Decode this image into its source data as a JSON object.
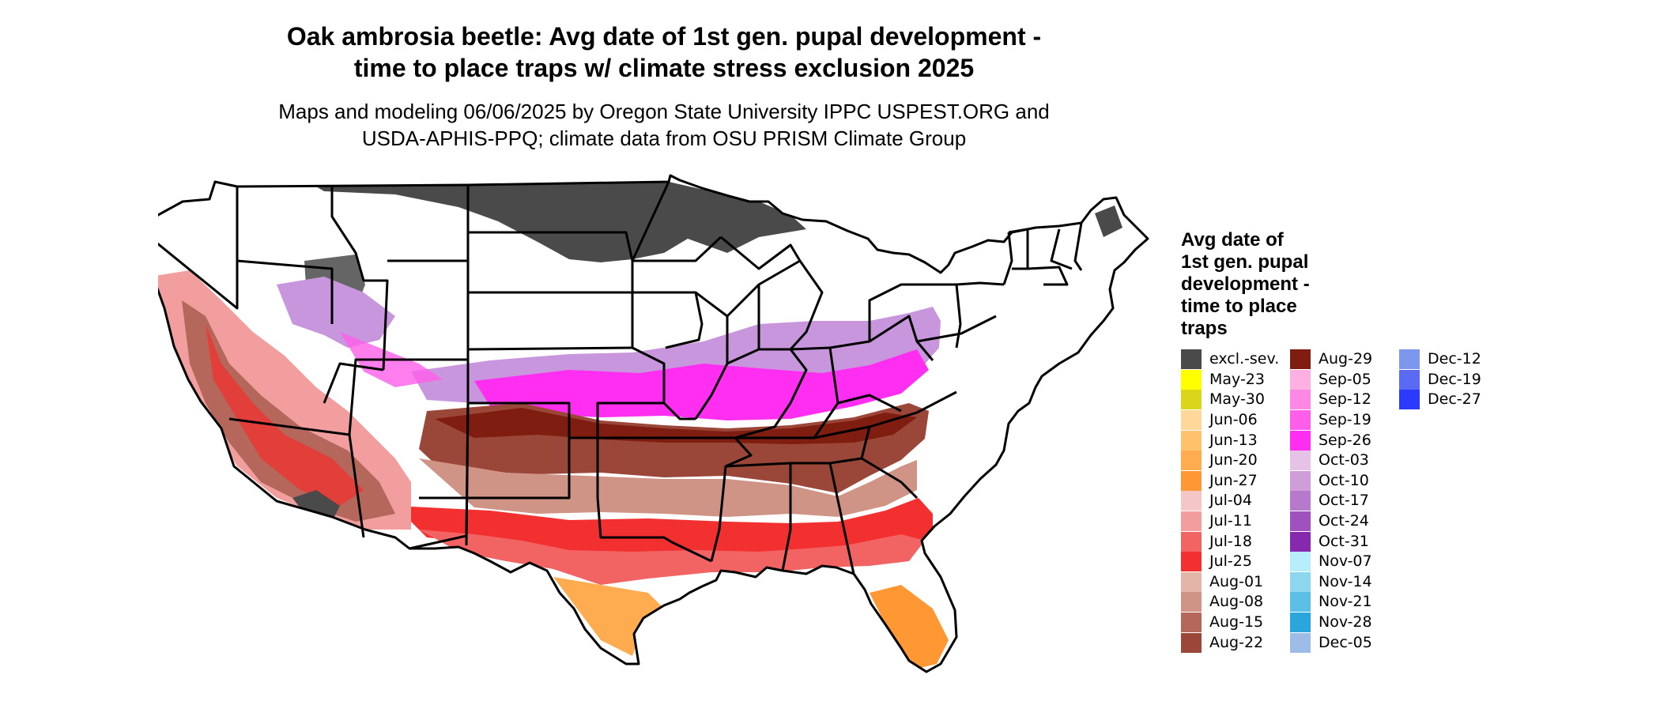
{
  "title_line1": "Oak ambrosia beetle: Avg date of 1st gen. pupal development -",
  "title_line2": "time to place traps w/ climate stress exclusion 2025",
  "subtitle_line1": "Maps and modeling 06/06/2025 by Oregon State University IPPC USPEST.ORG and",
  "subtitle_line2": "USDA-APHIS-PPQ; climate data from OSU PRISM Climate Group",
  "legend": {
    "title": [
      "Avg date of",
      "1st gen. pupal",
      "development -",
      "time to place",
      "traps"
    ],
    "items": [
      {
        "label": "excl.-sev.",
        "color": "#4a4a4a"
      },
      {
        "label": "May-23",
        "color": "#ffff00"
      },
      {
        "label": "May-30",
        "color": "#d9d61c"
      },
      {
        "label": "Jun-06",
        "color": "#ffd79a"
      },
      {
        "label": "Jun-13",
        "color": "#ffc26c"
      },
      {
        "label": "Jun-20",
        "color": "#ffac50"
      },
      {
        "label": "Jun-27",
        "color": "#ff9833"
      },
      {
        "label": "Jul-04",
        "color": "#f5c6c6"
      },
      {
        "label": "Jul-11",
        "color": "#f29e9e"
      },
      {
        "label": "Jul-18",
        "color": "#f26464"
      },
      {
        "label": "Jul-25",
        "color": "#f23030"
      },
      {
        "label": "Aug-01",
        "color": "#e3b5a8"
      },
      {
        "label": "Aug-08",
        "color": "#cf9486"
      },
      {
        "label": "Aug-15",
        "color": "#b4675a"
      },
      {
        "label": "Aug-22",
        "color": "#9a4638"
      },
      {
        "label": "Aug-29",
        "color": "#7f1d10"
      },
      {
        "label": "Sep-05",
        "color": "#ffb0e2"
      },
      {
        "label": "Sep-12",
        "color": "#ff88e6"
      },
      {
        "label": "Sep-19",
        "color": "#ff5eea"
      },
      {
        "label": "Sep-26",
        "color": "#ff2ef0"
      },
      {
        "label": "Oct-03",
        "color": "#e6c2e6"
      },
      {
        "label": "Oct-10",
        "color": "#cf9ed8"
      },
      {
        "label": "Oct-17",
        "color": "#b779cb"
      },
      {
        "label": "Oct-24",
        "color": "#9f52bd"
      },
      {
        "label": "Oct-31",
        "color": "#8729ae"
      },
      {
        "label": "Nov-07",
        "color": "#b8eefc"
      },
      {
        "label": "Nov-14",
        "color": "#8dd7ee"
      },
      {
        "label": "Nov-21",
        "color": "#5cc0e6"
      },
      {
        "label": "Nov-28",
        "color": "#2aa6dc"
      },
      {
        "label": "Dec-05",
        "color": "#9dbde6"
      },
      {
        "label": "Dec-12",
        "color": "#7d97ee"
      },
      {
        "label": "Dec-19",
        "color": "#5a6af2"
      },
      {
        "label": "Dec-27",
        "color": "#2a3aff"
      }
    ]
  },
  "map_colors": {
    "outline": "#000000",
    "unshaded": "#ffffff",
    "excluded": "#4a4a4a"
  }
}
